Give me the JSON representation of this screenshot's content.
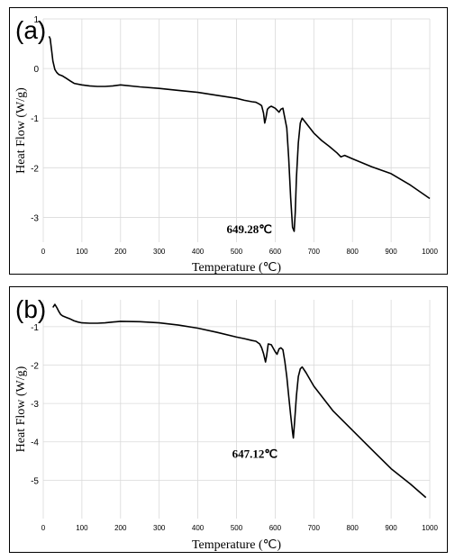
{
  "chart_data": [
    {
      "id": "a",
      "type": "line",
      "panel_label": "(a)",
      "xlabel": "Temperature (℃)",
      "ylabel": "Heat Flow (W/g)",
      "xlim": [
        0,
        1000
      ],
      "ylim": [
        -3.5,
        1
      ],
      "xticks": [
        0,
        100,
        200,
        300,
        400,
        500,
        600,
        700,
        800,
        900,
        1000
      ],
      "yticks": [
        1,
        0,
        -1,
        -2,
        -3
      ],
      "grid": true,
      "annotation": {
        "text": "649.28℃",
        "x": 649.28,
        "y": -3.28
      },
      "series": [
        {
          "x": [
            15,
            18,
            22,
            25,
            30,
            35,
            40,
            50,
            60,
            70,
            80,
            100,
            120,
            140,
            160,
            180,
            200,
            250,
            300,
            350,
            400,
            450,
            500,
            520,
            540,
            550,
            560,
            565,
            570,
            573,
            576,
            580,
            585,
            590,
            600,
            610,
            615,
            620,
            630,
            635,
            640,
            645,
            649.28,
            652,
            655,
            660,
            665,
            670,
            680,
            700,
            720,
            740,
            760,
            770,
            780,
            800,
            850,
            900,
            950,
            1000
          ],
          "values": [
            0.65,
            0.6,
            0.35,
            0.15,
            -0.02,
            -0.08,
            -0.12,
            -0.15,
            -0.2,
            -0.25,
            -0.3,
            -0.33,
            -0.35,
            -0.36,
            -0.36,
            -0.35,
            -0.33,
            -0.37,
            -0.4,
            -0.44,
            -0.48,
            -0.54,
            -0.6,
            -0.64,
            -0.67,
            -0.68,
            -0.72,
            -0.75,
            -0.9,
            -1.1,
            -1.0,
            -0.82,
            -0.78,
            -0.76,
            -0.8,
            -0.88,
            -0.82,
            -0.8,
            -1.2,
            -1.8,
            -2.6,
            -3.2,
            -3.28,
            -2.9,
            -2.2,
            -1.5,
            -1.1,
            -1.0,
            -1.1,
            -1.3,
            -1.45,
            -1.57,
            -1.7,
            -1.78,
            -1.75,
            -1.82,
            -1.98,
            -2.12,
            -2.35,
            -2.62
          ]
        }
      ]
    },
    {
      "id": "b",
      "type": "line",
      "panel_label": "(b)",
      "xlabel": "Temperature (℃)",
      "ylabel": "Heat Flow (W/g)",
      "xlim": [
        0,
        1000
      ],
      "ylim": [
        -6,
        -0.3
      ],
      "xticks": [
        0,
        100,
        200,
        300,
        400,
        500,
        600,
        700,
        800,
        900,
        1000
      ],
      "yticks": [
        -1,
        -2,
        -3,
        -4,
        -5
      ],
      "grid": true,
      "annotation": {
        "text": "647.12℃",
        "x": 647.12,
        "y": -3.9
      },
      "series": [
        {
          "x": [
            25,
            30,
            35,
            40,
            45,
            50,
            60,
            70,
            80,
            90,
            100,
            120,
            140,
            160,
            180,
            200,
            250,
            300,
            350,
            400,
            450,
            500,
            520,
            540,
            550,
            560,
            565,
            570,
            575,
            578,
            582,
            590,
            600,
            605,
            610,
            615,
            620,
            625,
            630,
            635,
            640,
            645,
            647.12,
            650,
            655,
            660,
            665,
            670,
            680,
            700,
            750,
            800,
            850,
            900,
            950,
            990
          ],
          "values": [
            -0.5,
            -0.42,
            -0.5,
            -0.6,
            -0.68,
            -0.72,
            -0.76,
            -0.8,
            -0.85,
            -0.88,
            -0.9,
            -0.91,
            -0.91,
            -0.9,
            -0.88,
            -0.86,
            -0.87,
            -0.9,
            -0.96,
            -1.04,
            -1.15,
            -1.27,
            -1.31,
            -1.36,
            -1.38,
            -1.45,
            -1.55,
            -1.7,
            -1.92,
            -1.75,
            -1.45,
            -1.47,
            -1.65,
            -1.72,
            -1.58,
            -1.55,
            -1.6,
            -1.9,
            -2.3,
            -2.8,
            -3.3,
            -3.75,
            -3.9,
            -3.5,
            -2.8,
            -2.3,
            -2.1,
            -2.05,
            -2.2,
            -2.55,
            -3.2,
            -3.7,
            -4.2,
            -4.7,
            -5.1,
            -5.45
          ]
        }
      ]
    }
  ]
}
